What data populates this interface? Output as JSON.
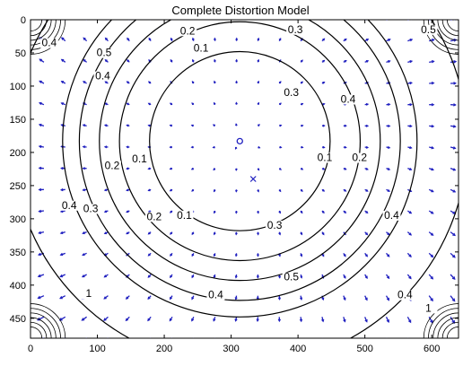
{
  "chart_data": {
    "type": "quiver-contour",
    "title": "Complete Distortion Model",
    "xlabel": "",
    "ylabel": "",
    "xlim": [
      0,
      640
    ],
    "ylim": [
      480,
      0
    ],
    "x_ticks": [
      0,
      100,
      200,
      300,
      400,
      500,
      600
    ],
    "y_ticks": [
      0,
      50,
      100,
      150,
      200,
      250,
      300,
      350,
      400,
      450
    ],
    "principal_point": [
      313,
      183
    ],
    "image_center": [
      333,
      240
    ],
    "contour_levels": [
      0.1,
      0.2,
      0.3,
      0.4,
      0.5,
      1
    ],
    "contour_labels": [
      {
        "text": "0.1",
        "x": 255,
        "y": 48
      },
      {
        "text": "0.2",
        "x": 235,
        "y": 22
      },
      {
        "text": "0.3",
        "x": 396,
        "y": 20
      },
      {
        "text": "0.4",
        "x": 28,
        "y": 40
      },
      {
        "text": "0.5",
        "x": 595,
        "y": 20
      },
      {
        "text": "0.3",
        "x": 390,
        "y": 115
      },
      {
        "text": "0.4",
        "x": 475,
        "y": 125
      },
      {
        "text": "0.4",
        "x": 108,
        "y": 90
      },
      {
        "text": "0.5",
        "x": 110,
        "y": 55
      },
      {
        "text": "0.2",
        "x": 122,
        "y": 225
      },
      {
        "text": "0.1",
        "x": 163,
        "y": 215
      },
      {
        "text": "0.1",
        "x": 440,
        "y": 213
      },
      {
        "text": "0.2",
        "x": 492,
        "y": 213
      },
      {
        "text": "0.3",
        "x": 90,
        "y": 290
      },
      {
        "text": "0.4",
        "x": 58,
        "y": 285
      },
      {
        "text": "0.1",
        "x": 230,
        "y": 300
      },
      {
        "text": "0.2",
        "x": 185,
        "y": 302
      },
      {
        "text": "0.3",
        "x": 365,
        "y": 315
      },
      {
        "text": "0.4",
        "x": 540,
        "y": 300
      },
      {
        "text": "0.5",
        "x": 390,
        "y": 393
      },
      {
        "text": "0.4",
        "x": 277,
        "y": 420
      },
      {
        "text": "1",
        "x": 87,
        "y": 418
      },
      {
        "text": "0.4",
        "x": 560,
        "y": 420
      },
      {
        "text": "1",
        "x": 595,
        "y": 440
      }
    ],
    "grid": false,
    "legend": "none",
    "vector_color": "#1f1fbf",
    "contour_color": "#000000"
  }
}
